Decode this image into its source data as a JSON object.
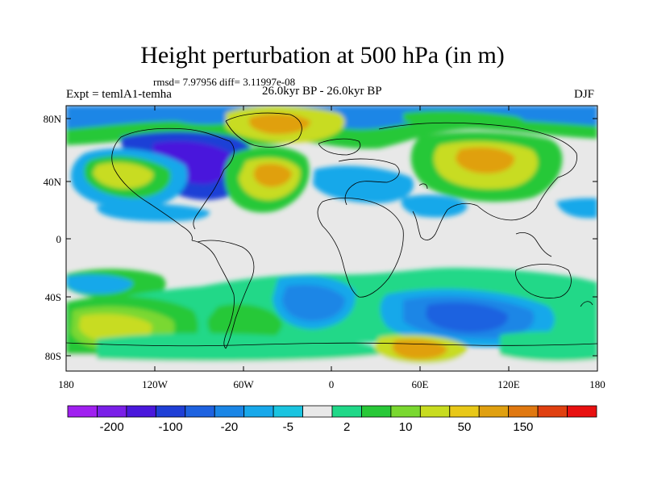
{
  "title": "Height perturbation at 500 hPa (in m)",
  "stats": "rmsd= 7.97956 diff= 3.11997e-08",
  "experiment": "Expt = temlA1-temha",
  "period": "26.0kyr BP - 26.0kyr BP",
  "season": "DJF",
  "axes": {
    "lat_ticks": [
      "80N",
      "40N",
      "0",
      "40S",
      "80S"
    ],
    "lon_ticks": [
      "180",
      "120W",
      "60W",
      "0",
      "60E",
      "120E",
      "180"
    ]
  },
  "colorbar": {
    "colors": [
      "#a020f0",
      "#7a1fe8",
      "#4a18dc",
      "#1f3fd6",
      "#1e62e0",
      "#1a86e6",
      "#18a8ea",
      "#1ac4e0",
      "#e8e8e8",
      "#20d888",
      "#28c838",
      "#7ad830",
      "#c8dc20",
      "#e8c818",
      "#e0a010",
      "#e07810",
      "#e04010",
      "#e81010"
    ],
    "labels": [
      "-200",
      "-100",
      "-20",
      "-5",
      "2",
      "10",
      "50",
      "150"
    ]
  },
  "colors": {
    "ocean_neutral": "#e8e8e8",
    "coast": "#000000"
  }
}
